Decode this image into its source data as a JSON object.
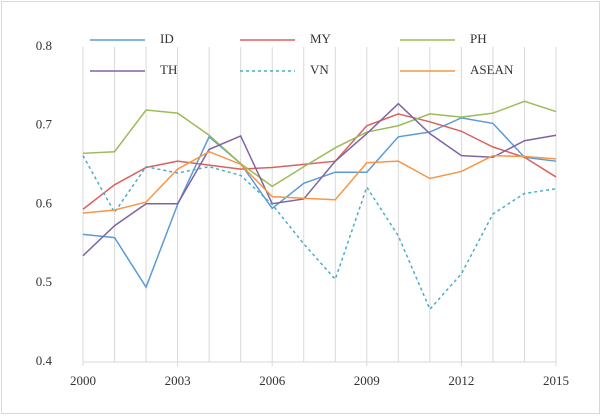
{
  "chart_data": {
    "type": "line",
    "x": [
      2000,
      2001,
      2002,
      2003,
      2004,
      2005,
      2006,
      2007,
      2008,
      2009,
      2010,
      2011,
      2012,
      2013,
      2014,
      2015
    ],
    "xlim": [
      2000,
      2015
    ],
    "xticks": [
      2000,
      2003,
      2006,
      2009,
      2012,
      2015
    ],
    "ylim": [
      0.4,
      0.8
    ],
    "yticks": [
      0.4,
      0.5,
      0.6,
      0.7,
      0.8
    ],
    "grid": "x",
    "legend": "top",
    "series": [
      {
        "name": "ID",
        "color": "#5b9bd5",
        "style": "solid",
        "values": [
          0.562,
          0.558,
          0.495,
          0.6,
          0.686,
          0.652,
          0.595,
          0.627,
          0.641,
          0.641,
          0.686,
          0.692,
          0.71,
          0.703,
          0.66,
          0.655
        ]
      },
      {
        "name": "MY",
        "color": "#d9625e",
        "style": "solid",
        "values": [
          0.594,
          0.625,
          0.647,
          0.655,
          0.65,
          0.645,
          0.647,
          0.651,
          0.655,
          0.7,
          0.715,
          0.705,
          0.693,
          0.673,
          0.66,
          0.635
        ]
      },
      {
        "name": "PH",
        "color": "#9bbb59",
        "style": "solid",
        "values": [
          0.665,
          0.667,
          0.72,
          0.716,
          0.688,
          0.652,
          0.623,
          0.648,
          0.672,
          0.692,
          0.7,
          0.715,
          0.711,
          0.716,
          0.731,
          0.718
        ]
      },
      {
        "name": "TH",
        "color": "#8064a2",
        "style": "solid",
        "values": [
          0.535,
          0.573,
          0.601,
          0.601,
          0.67,
          0.687,
          0.601,
          0.607,
          0.655,
          0.69,
          0.728,
          0.69,
          0.662,
          0.66,
          0.681,
          0.688
        ]
      },
      {
        "name": "VN",
        "color": "#4bacc6",
        "style": "dotted",
        "values": [
          0.662,
          0.59,
          0.648,
          0.64,
          0.648,
          0.637,
          0.6,
          0.55,
          0.505,
          0.622,
          0.56,
          0.467,
          0.512,
          0.588,
          0.614,
          0.62
        ]
      },
      {
        "name": "ASEAN",
        "color": "#f79646",
        "style": "solid",
        "values": [
          0.589,
          0.593,
          0.603,
          0.645,
          0.667,
          0.651,
          0.61,
          0.608,
          0.606,
          0.653,
          0.655,
          0.633,
          0.642,
          0.662,
          0.661,
          0.658
        ]
      }
    ]
  }
}
